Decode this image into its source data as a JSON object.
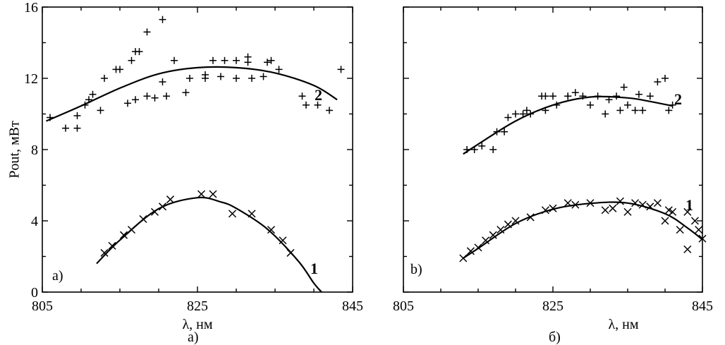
{
  "chart_data": [
    {
      "type": "scatter",
      "panel_label": "a)",
      "caption": "а)",
      "xlabel": "λ, нм",
      "ylabel": "Pout, мВт",
      "xlim": [
        805,
        845
      ],
      "ylim": [
        0,
        16
      ],
      "xticks": [
        "805",
        "825",
        "845"
      ],
      "yticks": [
        "0",
        "4",
        "8",
        "12",
        "16"
      ],
      "series": [
        {
          "name": "2",
          "marker": "plus",
          "points": [
            [
              806,
              9.8
            ],
            [
              808,
              9.2
            ],
            [
              809.5,
              9.2
            ],
            [
              809.5,
              9.9
            ],
            [
              810.5,
              10.5
            ],
            [
              811,
              10.8
            ],
            [
              811.5,
              11.1
            ],
            [
              812.5,
              10.2
            ],
            [
              813,
              12
            ],
            [
              814.5,
              12.5
            ],
            [
              815,
              12.5
            ],
            [
              816,
              10.6
            ],
            [
              816.5,
              13
            ],
            [
              817,
              10.8
            ],
            [
              817,
              13.5
            ],
            [
              817.5,
              13.5
            ],
            [
              818.5,
              14.6
            ],
            [
              818.5,
              11
            ],
            [
              819.5,
              10.9
            ],
            [
              820.5,
              15.3
            ],
            [
              820.5,
              11.8
            ],
            [
              821,
              11
            ],
            [
              822,
              13
            ],
            [
              823.5,
              11.2
            ],
            [
              824,
              12
            ],
            [
              826,
              12
            ],
            [
              826,
              12.2
            ],
            [
              827,
              13
            ],
            [
              828,
              12.1
            ],
            [
              828.5,
              13
            ],
            [
              830,
              13
            ],
            [
              830,
              12
            ],
            [
              831.5,
              13.2
            ],
            [
              831.5,
              12.9
            ],
            [
              832,
              12
            ],
            [
              833.5,
              12.1
            ],
            [
              834,
              12.9
            ],
            [
              834.5,
              13
            ],
            [
              835.5,
              12.5
            ],
            [
              838.5,
              11
            ],
            [
              839,
              10.5
            ],
            [
              840.5,
              10.5
            ],
            [
              842,
              10.2
            ],
            [
              843.5,
              12.5
            ]
          ],
          "fit": [
            [
              805.5,
              9.6
            ],
            [
              810,
              10.45
            ],
            [
              815,
              11.45
            ],
            [
              820,
              12.25
            ],
            [
              825,
              12.6
            ],
            [
              830,
              12.6
            ],
            [
              835,
              12.3
            ],
            [
              840,
              11.6
            ],
            [
              843,
              10.8
            ]
          ]
        },
        {
          "name": "1",
          "marker": "x",
          "points": [
            [
              813,
              2.2
            ],
            [
              814,
              2.6
            ],
            [
              815.5,
              3.2
            ],
            [
              816.5,
              3.5
            ],
            [
              818,
              4.1
            ],
            [
              819.5,
              4.5
            ],
            [
              820.5,
              4.8
            ],
            [
              821.5,
              5.2
            ],
            [
              825.5,
              5.5
            ],
            [
              827,
              5.5
            ],
            [
              829.5,
              4.4
            ],
            [
              832,
              4.4
            ],
            [
              834.5,
              3.5
            ],
            [
              836,
              2.9
            ],
            [
              837,
              2.2
            ]
          ],
          "fit": [
            [
              812,
              1.6
            ],
            [
              815,
              2.92
            ],
            [
              820,
              4.68
            ],
            [
              825,
              5.3
            ],
            [
              828,
              5.06
            ],
            [
              830,
              4.7
            ],
            [
              834,
              3.54
            ],
            [
              838,
              1.74
            ],
            [
              840,
              0.5
            ],
            [
              841,
              0
            ]
          ]
        }
      ]
    },
    {
      "type": "scatter",
      "panel_label": "b)",
      "caption": "б)",
      "xlabel": "λ, нм",
      "ylabel": "",
      "xlim": [
        805,
        845
      ],
      "ylim": [
        0,
        16
      ],
      "xticks": [
        "805",
        "825",
        "845"
      ],
      "yticks": [],
      "series": [
        {
          "name": "2",
          "marker": "plus",
          "points": [
            [
              813.5,
              8
            ],
            [
              814.5,
              8
            ],
            [
              815.5,
              8.2
            ],
            [
              817,
              8
            ],
            [
              817.5,
              9
            ],
            [
              818.5,
              9
            ],
            [
              819,
              9.8
            ],
            [
              820,
              10
            ],
            [
              821,
              10
            ],
            [
              821.5,
              10.2
            ],
            [
              822,
              10
            ],
            [
              823.5,
              11
            ],
            [
              824,
              11
            ],
            [
              824,
              10.2
            ],
            [
              825,
              11
            ],
            [
              825.5,
              10.5
            ],
            [
              827,
              11
            ],
            [
              827,
              11
            ],
            [
              828,
              11.2
            ],
            [
              829,
              11
            ],
            [
              830,
              10.5
            ],
            [
              831,
              11
            ],
            [
              832,
              10
            ],
            [
              832.5,
              10.8
            ],
            [
              833.5,
              11
            ],
            [
              834,
              10.2
            ],
            [
              834.5,
              11.5
            ],
            [
              835,
              10.5
            ],
            [
              836,
              10.2
            ],
            [
              836.5,
              11.1
            ],
            [
              837,
              10.2
            ],
            [
              838,
              11
            ],
            [
              839,
              11.8
            ],
            [
              840,
              12
            ],
            [
              840.5,
              10.2
            ],
            [
              841,
              10.5
            ]
          ],
          "fit": [
            [
              813,
              7.75
            ],
            [
              815,
              8.3
            ],
            [
              820,
              9.6
            ],
            [
              825,
              10.5
            ],
            [
              830,
              10.95
            ],
            [
              835,
              10.9
            ],
            [
              838,
              10.7
            ],
            [
              841,
              10.45
            ]
          ]
        },
        {
          "name": "1",
          "marker": "x",
          "points": [
            [
              813,
              1.9
            ],
            [
              814,
              2.3
            ],
            [
              815,
              2.5
            ],
            [
              816,
              2.9
            ],
            [
              817,
              3.2
            ],
            [
              818,
              3.5
            ],
            [
              819,
              3.8
            ],
            [
              820,
              4
            ],
            [
              822,
              4.2
            ],
            [
              824,
              4.6
            ],
            [
              825,
              4.7
            ],
            [
              827,
              5
            ],
            [
              828,
              4.9
            ],
            [
              830,
              5
            ],
            [
              832,
              4.6
            ],
            [
              833,
              4.7
            ],
            [
              834,
              5.1
            ],
            [
              835,
              4.5
            ],
            [
              836,
              5
            ],
            [
              837,
              4.9
            ],
            [
              838,
              4.8
            ],
            [
              839,
              5
            ],
            [
              840,
              4
            ],
            [
              840.5,
              4.6
            ],
            [
              841,
              4.5
            ],
            [
              842,
              3.5
            ],
            [
              843,
              2.4
            ],
            [
              843,
              4.5
            ],
            [
              844,
              4
            ],
            [
              844.5,
              3.5
            ],
            [
              845,
              3
            ]
          ],
          "fit": [
            [
              813,
              1.9
            ],
            [
              815,
              2.45
            ],
            [
              820,
              3.85
            ],
            [
              825,
              4.65
            ],
            [
              830,
              4.98
            ],
            [
              835,
              5
            ],
            [
              840,
              4.4
            ],
            [
              843,
              3.6
            ],
            [
              845,
              2.95
            ]
          ]
        }
      ]
    }
  ]
}
